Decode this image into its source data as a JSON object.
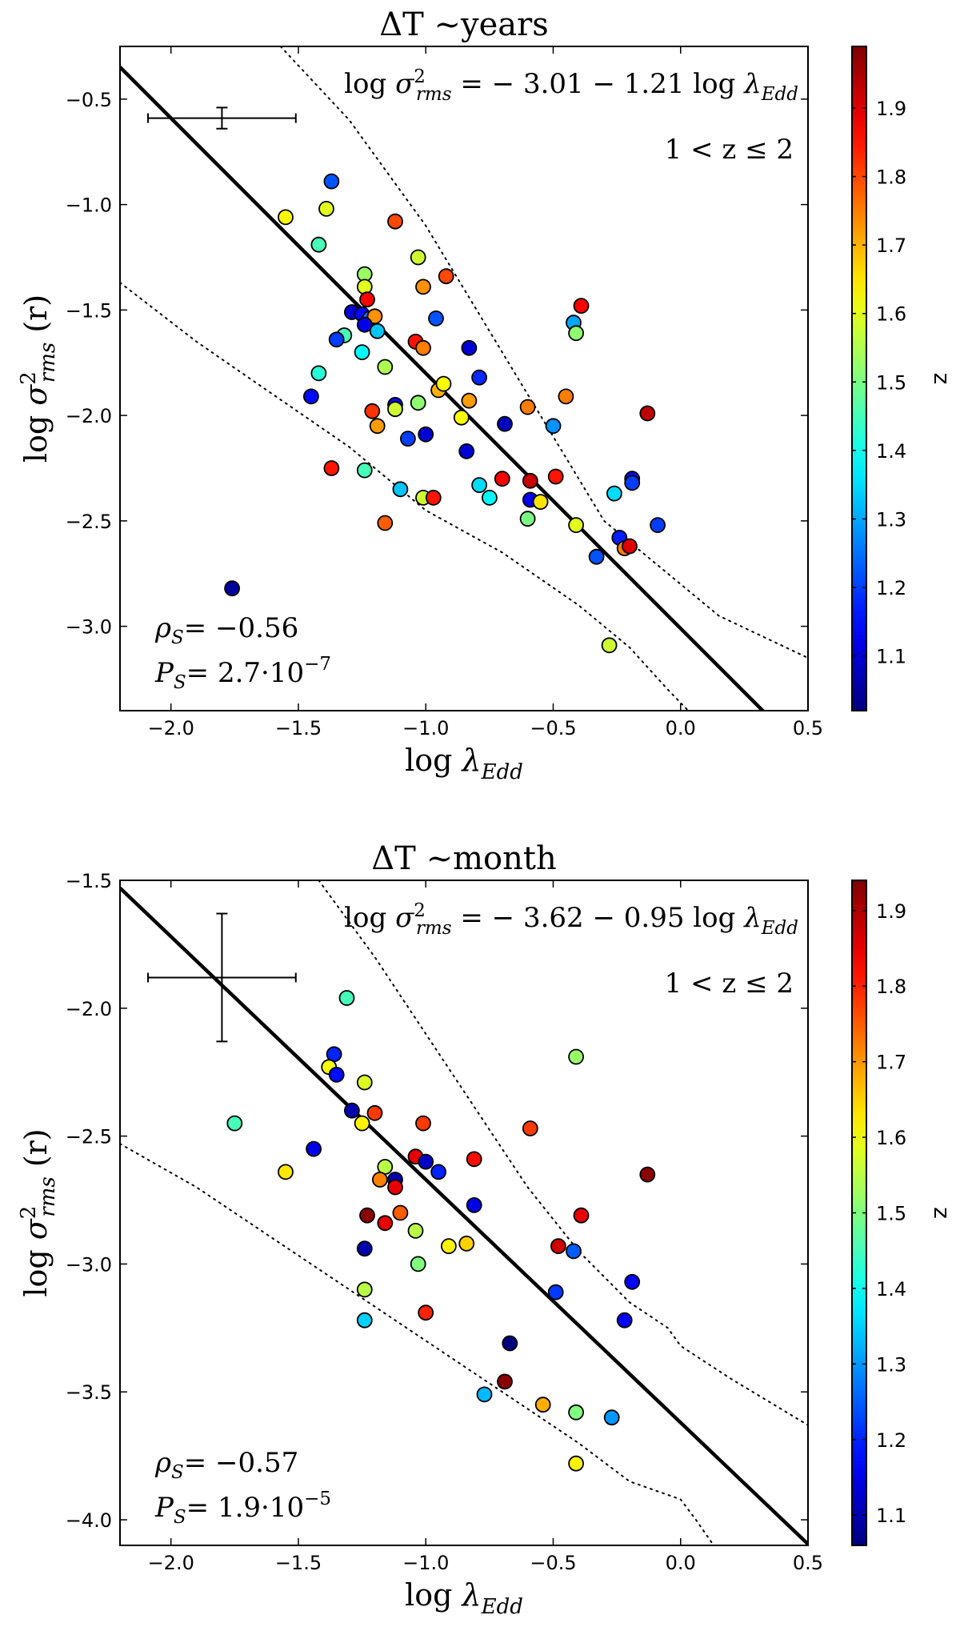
{
  "chart_data": [
    {
      "type": "scatter",
      "title": "ΔT ~years",
      "xlabel": "log λ_Edd",
      "ylabel": "log σ²_rms (r)",
      "xlim": [
        -2.2,
        0.5
      ],
      "ylim": [
        -3.4,
        -0.25
      ],
      "xticks": [
        -2.0,
        -1.5,
        -1.0,
        -0.5,
        0.0,
        0.5
      ],
      "yticks": [
        -3.0,
        -2.5,
        -2.0,
        -1.5,
        -1.0,
        -0.5
      ],
      "tick_labels_x": [
        "−2.0",
        "−1.5",
        "−1.0",
        "−0.5",
        "0.0",
        "0.5"
      ],
      "tick_labels_y": [
        "−3.0",
        "−2.5",
        "−2.0",
        "−1.5",
        "−1.0",
        "−0.5"
      ],
      "fit": {
        "intercept": -3.01,
        "slope": -1.21,
        "label": "log σ²_rms = − 3.01 − 1.21 log λ_Edd"
      },
      "z_range_label": "1 < z ≤ 2",
      "rho_label": "ρ_S = −0.56",
      "p_label": "P_S = 2.7·10⁻⁷",
      "error_bar": {
        "x": -1.8,
        "y": -0.59,
        "xerr": 0.29,
        "yerr": 0.05
      },
      "upper_envelope": [
        [
          -1.57,
          -0.25
        ],
        [
          -1.3,
          -0.6
        ],
        [
          -1.0,
          -1.1
        ],
        [
          -0.8,
          -1.5
        ],
        [
          -0.6,
          -1.9
        ],
        [
          -0.45,
          -2.2
        ],
        [
          -0.3,
          -2.5
        ],
        [
          -0.18,
          -2.62
        ],
        [
          -0.05,
          -2.75
        ],
        [
          0.15,
          -2.95
        ],
        [
          0.5,
          -3.15
        ]
      ],
      "lower_envelope": [
        [
          -2.2,
          -1.37
        ],
        [
          -1.9,
          -1.65
        ],
        [
          -1.6,
          -1.9
        ],
        [
          -1.3,
          -2.15
        ],
        [
          -1.0,
          -2.45
        ],
        [
          -0.7,
          -2.65
        ],
        [
          -0.4,
          -2.9
        ],
        [
          -0.2,
          -3.1
        ],
        [
          -0.05,
          -3.3
        ],
        [
          0.03,
          -3.4
        ]
      ],
      "colorbar": {
        "label": "z",
        "range": [
          1.02,
          1.99
        ],
        "ticks": [
          1.1,
          1.2,
          1.3,
          1.4,
          1.5,
          1.6,
          1.7,
          1.8,
          1.9
        ],
        "tick_labels": [
          "1.1",
          "1.2",
          "1.3",
          "1.4",
          "1.5",
          "1.6",
          "1.7",
          "1.8",
          "1.9"
        ]
      },
      "points": [
        {
          "x": -1.76,
          "y": -2.82,
          "z": 1.05
        },
        {
          "x": -1.55,
          "y": -1.06,
          "z": 1.63
        },
        {
          "x": -1.37,
          "y": -0.89,
          "z": 1.22
        },
        {
          "x": -1.39,
          "y": -1.02,
          "z": 1.6
        },
        {
          "x": -1.42,
          "y": -1.19,
          "z": 1.45
        },
        {
          "x": -1.12,
          "y": -1.08,
          "z": 1.8
        },
        {
          "x": -1.24,
          "y": -1.33,
          "z": 1.53
        },
        {
          "x": -1.24,
          "y": -1.39,
          "z": 1.6
        },
        {
          "x": -1.23,
          "y": -1.45,
          "z": 1.87
        },
        {
          "x": -1.03,
          "y": -1.25,
          "z": 1.58
        },
        {
          "x": -1.01,
          "y": -1.39,
          "z": 1.73
        },
        {
          "x": -0.92,
          "y": -1.34,
          "z": 1.8
        },
        {
          "x": -1.29,
          "y": -1.51,
          "z": 1.1
        },
        {
          "x": -1.25,
          "y": -1.52,
          "z": 1.15
        },
        {
          "x": -1.22,
          "y": -1.54,
          "z": 1.25
        },
        {
          "x": -1.2,
          "y": -1.53,
          "z": 1.73
        },
        {
          "x": -1.24,
          "y": -1.57,
          "z": 1.12
        },
        {
          "x": -1.19,
          "y": -1.6,
          "z": 1.33
        },
        {
          "x": -1.32,
          "y": -1.62,
          "z": 1.45
        },
        {
          "x": -1.35,
          "y": -1.64,
          "z": 1.2
        },
        {
          "x": -1.25,
          "y": -1.7,
          "z": 1.38
        },
        {
          "x": -1.16,
          "y": -1.77,
          "z": 1.55
        },
        {
          "x": -1.42,
          "y": -1.8,
          "z": 1.42
        },
        {
          "x": -1.45,
          "y": -1.91,
          "z": 1.15
        },
        {
          "x": -1.04,
          "y": -1.65,
          "z": 1.85
        },
        {
          "x": -1.01,
          "y": -1.68,
          "z": 1.75
        },
        {
          "x": -0.96,
          "y": -1.54,
          "z": 1.22
        },
        {
          "x": -0.83,
          "y": -1.68,
          "z": 1.1
        },
        {
          "x": -0.79,
          "y": -1.82,
          "z": 1.18
        },
        {
          "x": -0.42,
          "y": -1.56,
          "z": 1.3
        },
        {
          "x": -0.41,
          "y": -1.61,
          "z": 1.52
        },
        {
          "x": -0.39,
          "y": -1.48,
          "z": 1.87
        },
        {
          "x": -1.21,
          "y": -1.98,
          "z": 1.82
        },
        {
          "x": -1.19,
          "y": -2.05,
          "z": 1.72
        },
        {
          "x": -1.12,
          "y": -1.95,
          "z": 1.15
        },
        {
          "x": -1.12,
          "y": -1.97,
          "z": 1.58
        },
        {
          "x": -1.07,
          "y": -2.11,
          "z": 1.2
        },
        {
          "x": -1.03,
          "y": -1.94,
          "z": 1.52
        },
        {
          "x": -1.0,
          "y": -2.09,
          "z": 1.1
        },
        {
          "x": -0.95,
          "y": -1.88,
          "z": 1.7
        },
        {
          "x": -0.93,
          "y": -1.85,
          "z": 1.62
        },
        {
          "x": -0.86,
          "y": -2.01,
          "z": 1.63
        },
        {
          "x": -0.83,
          "y": -1.93,
          "z": 1.72
        },
        {
          "x": -0.84,
          "y": -2.17,
          "z": 1.1
        },
        {
          "x": -0.69,
          "y": -2.04,
          "z": 1.08
        },
        {
          "x": -0.6,
          "y": -1.96,
          "z": 1.75
        },
        {
          "x": -0.5,
          "y": -2.05,
          "z": 1.28
        },
        {
          "x": -0.45,
          "y": -1.91,
          "z": 1.75
        },
        {
          "x": -1.37,
          "y": -2.25,
          "z": 1.85
        },
        {
          "x": -1.24,
          "y": -2.26,
          "z": 1.45
        },
        {
          "x": -1.1,
          "y": -2.35,
          "z": 1.33
        },
        {
          "x": -1.16,
          "y": -2.51,
          "z": 1.78
        },
        {
          "x": -1.01,
          "y": -2.39,
          "z": 1.58
        },
        {
          "x": -0.97,
          "y": -2.39,
          "z": 1.85
        },
        {
          "x": -0.79,
          "y": -2.33,
          "z": 1.35
        },
        {
          "x": -0.75,
          "y": -2.39,
          "z": 1.38
        },
        {
          "x": -0.7,
          "y": -2.3,
          "z": 1.87
        },
        {
          "x": -0.59,
          "y": -2.31,
          "z": 1.92
        },
        {
          "x": -0.59,
          "y": -2.4,
          "z": 1.12
        },
        {
          "x": -0.55,
          "y": -2.41,
          "z": 1.65
        },
        {
          "x": -0.49,
          "y": -2.29,
          "z": 1.85
        },
        {
          "x": -0.6,
          "y": -2.49,
          "z": 1.5
        },
        {
          "x": -0.41,
          "y": -2.52,
          "z": 1.6
        },
        {
          "x": -0.26,
          "y": -2.37,
          "z": 1.35
        },
        {
          "x": -0.19,
          "y": -2.3,
          "z": 1.15
        },
        {
          "x": -0.19,
          "y": -2.32,
          "z": 1.2
        },
        {
          "x": -0.24,
          "y": -2.58,
          "z": 1.17
        },
        {
          "x": -0.22,
          "y": -2.63,
          "z": 1.75
        },
        {
          "x": -0.2,
          "y": -2.62,
          "z": 1.9
        },
        {
          "x": -0.09,
          "y": -2.52,
          "z": 1.2
        },
        {
          "x": -0.33,
          "y": -2.67,
          "z": 1.22
        },
        {
          "x": -0.13,
          "y": -1.99,
          "z": 1.93
        },
        {
          "x": -0.28,
          "y": -3.09,
          "z": 1.58
        }
      ]
    },
    {
      "type": "scatter",
      "title": "ΔT ~month",
      "xlabel": "log λ_Edd",
      "ylabel": "log σ²_rms (r)",
      "xlim": [
        -2.2,
        0.5
      ],
      "ylim": [
        -4.1,
        -1.5
      ],
      "xticks": [
        -2.0,
        -1.5,
        -1.0,
        -0.5,
        0.0,
        0.5
      ],
      "yticks": [
        -4.0,
        -3.5,
        -3.0,
        -2.5,
        -2.0,
        -1.5
      ],
      "tick_labels_x": [
        "−2.0",
        "−1.5",
        "−1.0",
        "−0.5",
        "0.0",
        "0.5"
      ],
      "tick_labels_y": [
        "−4.0",
        "−3.5",
        "−3.0",
        "−2.5",
        "−2.0",
        "−1.5"
      ],
      "fit": {
        "intercept": -3.62,
        "slope": -0.95,
        "label": "log σ²_rms = − 3.62 − 0.95 log λ_Edd"
      },
      "z_range_label": "1 < z ≤ 2",
      "rho_label": "ρ_S = −0.57",
      "p_label": "P_S = 1.9·10⁻⁵",
      "error_bar": {
        "x": -1.8,
        "y": -1.88,
        "xerr": 0.29,
        "yerr": 0.25
      },
      "upper_envelope": [
        [
          -1.42,
          -1.5
        ],
        [
          -1.2,
          -1.8
        ],
        [
          -1.0,
          -2.1
        ],
        [
          -0.8,
          -2.4
        ],
        [
          -0.6,
          -2.7
        ],
        [
          -0.4,
          -2.95
        ],
        [
          -0.2,
          -3.15
        ],
        [
          -0.05,
          -3.25
        ],
        [
          0.0,
          -3.32
        ],
        [
          0.2,
          -3.45
        ],
        [
          0.5,
          -3.63
        ]
      ],
      "lower_envelope": [
        [
          -2.2,
          -2.53
        ],
        [
          -1.9,
          -2.7
        ],
        [
          -1.6,
          -2.9
        ],
        [
          -1.3,
          -3.1
        ],
        [
          -1.0,
          -3.3
        ],
        [
          -0.7,
          -3.5
        ],
        [
          -0.4,
          -3.7
        ],
        [
          -0.2,
          -3.85
        ],
        [
          0.0,
          -3.92
        ],
        [
          0.06,
          -4.0
        ],
        [
          0.13,
          -4.1
        ]
      ],
      "colorbar": {
        "label": "z",
        "range": [
          1.06,
          1.94
        ],
        "ticks": [
          1.1,
          1.2,
          1.3,
          1.4,
          1.5,
          1.6,
          1.7,
          1.8,
          1.9
        ],
        "tick_labels": [
          "1.1",
          "1.2",
          "1.3",
          "1.4",
          "1.5",
          "1.6",
          "1.7",
          "1.8",
          "1.9"
        ]
      },
      "points": [
        {
          "x": -1.31,
          "y": -1.96,
          "z": 1.45
        },
        {
          "x": -1.36,
          "y": -2.18,
          "z": 1.2
        },
        {
          "x": -1.38,
          "y": -2.23,
          "z": 1.6
        },
        {
          "x": -1.35,
          "y": -2.26,
          "z": 1.18
        },
        {
          "x": -1.24,
          "y": -2.29,
          "z": 1.58
        },
        {
          "x": -0.41,
          "y": -2.19,
          "z": 1.52
        },
        {
          "x": -1.75,
          "y": -2.45,
          "z": 1.45
        },
        {
          "x": -1.29,
          "y": -2.4,
          "z": 1.1
        },
        {
          "x": -1.25,
          "y": -2.45,
          "z": 1.62
        },
        {
          "x": -1.2,
          "y": -2.41,
          "z": 1.78
        },
        {
          "x": -1.01,
          "y": -2.45,
          "z": 1.78
        },
        {
          "x": -0.59,
          "y": -2.47,
          "z": 1.78
        },
        {
          "x": -1.55,
          "y": -2.64,
          "z": 1.63
        },
        {
          "x": -1.44,
          "y": -2.55,
          "z": 1.15
        },
        {
          "x": -1.16,
          "y": -2.62,
          "z": 1.55
        },
        {
          "x": -1.04,
          "y": -2.58,
          "z": 1.85
        },
        {
          "x": -1.0,
          "y": -2.6,
          "z": 1.12
        },
        {
          "x": -0.95,
          "y": -2.64,
          "z": 1.2
        },
        {
          "x": -0.81,
          "y": -2.59,
          "z": 1.82
        },
        {
          "x": -1.12,
          "y": -2.67,
          "z": 1.1
        },
        {
          "x": -1.18,
          "y": -2.67,
          "z": 1.72
        },
        {
          "x": -1.12,
          "y": -2.7,
          "z": 1.85
        },
        {
          "x": -0.13,
          "y": -2.65,
          "z": 1.93
        },
        {
          "x": -1.23,
          "y": -2.81,
          "z": 1.93
        },
        {
          "x": -1.16,
          "y": -2.84,
          "z": 1.85
        },
        {
          "x": -1.1,
          "y": -2.8,
          "z": 1.75
        },
        {
          "x": -0.81,
          "y": -2.77,
          "z": 1.15
        },
        {
          "x": -0.39,
          "y": -2.81,
          "z": 1.85
        },
        {
          "x": -1.24,
          "y": -2.94,
          "z": 1.1
        },
        {
          "x": -1.04,
          "y": -2.87,
          "z": 1.55
        },
        {
          "x": -0.91,
          "y": -2.93,
          "z": 1.62
        },
        {
          "x": -0.84,
          "y": -2.92,
          "z": 1.65
        },
        {
          "x": -0.48,
          "y": -2.93,
          "z": 1.87
        },
        {
          "x": -0.42,
          "y": -2.95,
          "z": 1.25
        },
        {
          "x": -0.19,
          "y": -3.07,
          "z": 1.17
        },
        {
          "x": -1.24,
          "y": -3.1,
          "z": 1.55
        },
        {
          "x": -1.03,
          "y": -3.0,
          "z": 1.5
        },
        {
          "x": -0.49,
          "y": -3.11,
          "z": 1.22
        },
        {
          "x": -1.24,
          "y": -3.22,
          "z": 1.35
        },
        {
          "x": -1.0,
          "y": -3.19,
          "z": 1.8
        },
        {
          "x": -0.22,
          "y": -3.22,
          "z": 1.17
        },
        {
          "x": -0.67,
          "y": -3.31,
          "z": 1.06
        },
        {
          "x": -0.69,
          "y": -3.46,
          "z": 1.93
        },
        {
          "x": -0.77,
          "y": -3.51,
          "z": 1.33
        },
        {
          "x": -0.54,
          "y": -3.55,
          "z": 1.68
        },
        {
          "x": -0.41,
          "y": -3.58,
          "z": 1.5
        },
        {
          "x": -0.27,
          "y": -3.6,
          "z": 1.3
        },
        {
          "x": -0.41,
          "y": -3.78,
          "z": 1.62
        }
      ]
    }
  ]
}
